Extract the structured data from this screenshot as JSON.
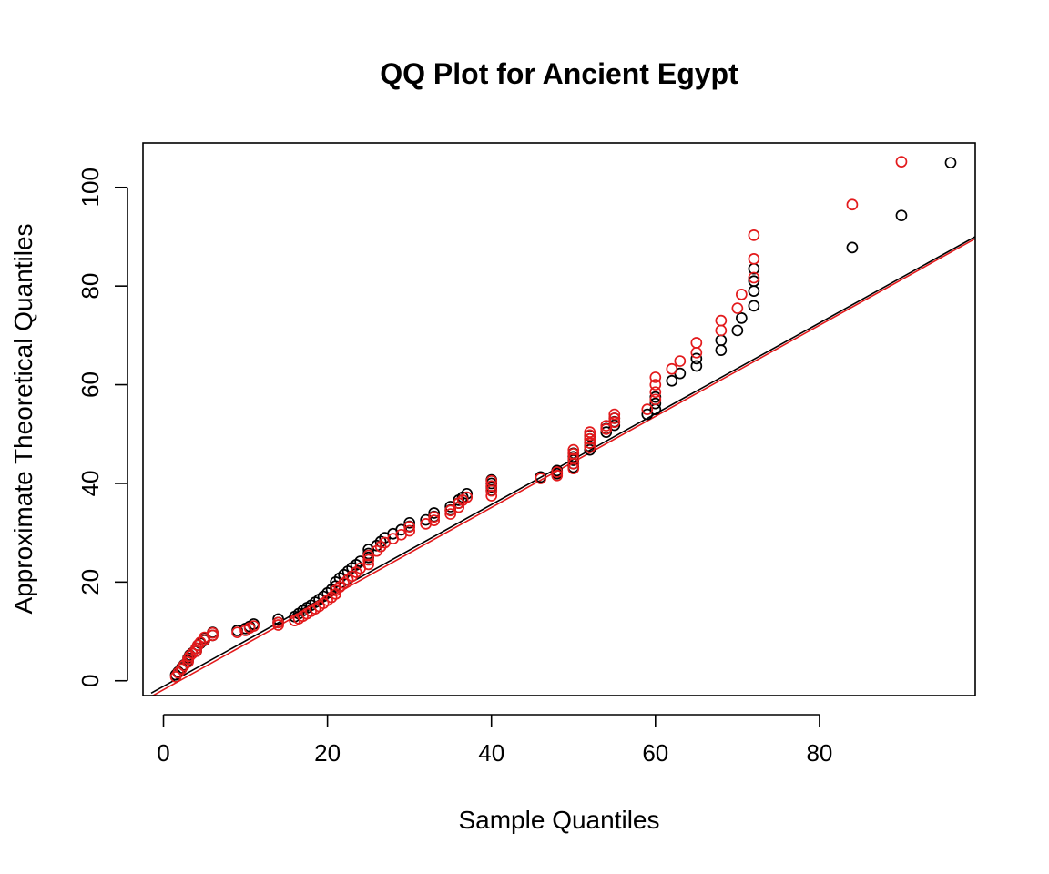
{
  "chart_data": {
    "type": "scatter",
    "title": "QQ Plot for Ancient Egypt",
    "xlabel": "Sample Quantiles",
    "ylabel": "Approximate Theoretical Quantiles",
    "xlim": [
      -2.5,
      99
    ],
    "ylim": [
      -3,
      109
    ],
    "x_ticks": [
      "0",
      "20",
      "40",
      "60",
      "80"
    ],
    "y_ticks": [
      "0",
      "20",
      "40",
      "60",
      "80",
      "100"
    ],
    "grid": false,
    "legend": "none",
    "series": [
      {
        "color": "#000000",
        "marker": "open-circle",
        "points": [
          [
            1.5,
            1.2
          ],
          [
            1.8,
            1.8
          ],
          [
            2.2,
            2.6
          ],
          [
            2.5,
            3.2
          ],
          [
            3,
            4.0
          ],
          [
            3,
            4.6
          ],
          [
            3.2,
            5.2
          ],
          [
            3.5,
            5.6
          ],
          [
            4,
            6.0
          ],
          [
            4,
            6.6
          ],
          [
            4.2,
            7.2
          ],
          [
            4.5,
            7.6
          ],
          [
            5,
            8.2
          ],
          [
            5,
            8.7
          ],
          [
            6,
            9.2
          ],
          [
            6,
            9.8
          ],
          [
            9,
            10.2
          ],
          [
            10,
            10.6
          ],
          [
            10.5,
            11.0
          ],
          [
            11,
            11.5
          ],
          [
            14,
            11.8
          ],
          [
            14,
            12.5
          ],
          [
            16,
            13.0
          ],
          [
            16.5,
            13.6
          ],
          [
            17,
            14.2
          ],
          [
            17.5,
            14.8
          ],
          [
            18,
            15.3
          ],
          [
            18.5,
            15.9
          ],
          [
            19,
            16.5
          ],
          [
            19.5,
            17.1
          ],
          [
            20,
            17.8
          ],
          [
            20.5,
            18.5
          ],
          [
            21,
            19.2
          ],
          [
            21,
            20.0
          ],
          [
            21.5,
            20.8
          ],
          [
            22,
            21.5
          ],
          [
            22.5,
            22.2
          ],
          [
            23,
            22.9
          ],
          [
            23.5,
            23.5
          ],
          [
            24,
            24.2
          ],
          [
            25,
            25.0
          ],
          [
            25,
            25.8
          ],
          [
            25,
            26.6
          ],
          [
            26,
            27.4
          ],
          [
            26.5,
            28.2
          ],
          [
            27,
            29.0
          ],
          [
            28,
            29.8
          ],
          [
            29,
            30.6
          ],
          [
            30,
            31.3
          ],
          [
            30,
            32.0
          ],
          [
            32,
            32.6
          ],
          [
            33,
            33.3
          ],
          [
            33,
            34.0
          ],
          [
            35,
            34.6
          ],
          [
            35,
            35.3
          ],
          [
            36,
            36.0
          ],
          [
            36,
            36.6
          ],
          [
            36.5,
            37.2
          ],
          [
            37,
            37.9
          ],
          [
            40,
            38.6
          ],
          [
            40,
            39.3
          ],
          [
            40,
            40.0
          ],
          [
            40,
            40.7
          ],
          [
            46,
            41.3
          ],
          [
            48,
            42.0
          ],
          [
            48,
            42.6
          ],
          [
            50,
            43.3
          ],
          [
            50,
            44.0
          ],
          [
            50,
            44.7
          ],
          [
            50,
            45.4
          ],
          [
            50,
            46.1
          ],
          [
            52,
            46.8
          ],
          [
            52,
            47.5
          ],
          [
            52,
            48.2
          ],
          [
            52,
            49.0
          ],
          [
            52,
            49.7
          ],
          [
            54,
            50.4
          ],
          [
            54,
            51.1
          ],
          [
            55,
            51.8
          ],
          [
            55,
            52.5
          ],
          [
            55,
            53.2
          ],
          [
            59,
            54.0
          ],
          [
            60,
            55.0
          ],
          [
            60,
            56.2
          ],
          [
            60,
            57.5
          ],
          [
            62,
            60.8
          ],
          [
            63,
            62.3
          ],
          [
            65,
            63.8
          ],
          [
            65,
            65.3
          ],
          [
            68,
            67.0
          ],
          [
            68,
            69.0
          ],
          [
            70,
            71.0
          ],
          [
            70.5,
            73.5
          ],
          [
            72,
            76.0
          ],
          [
            72,
            79.0
          ],
          [
            72,
            81.0
          ],
          [
            72,
            83.5
          ],
          [
            84,
            87.8
          ],
          [
            90,
            94.3
          ],
          [
            96,
            105.0
          ]
        ]
      },
      {
        "color": "#e31a1c",
        "marker": "open-circle",
        "points": [
          [
            1.5,
            0.8
          ],
          [
            1.8,
            1.6
          ],
          [
            2.2,
            2.4
          ],
          [
            2.5,
            3.1
          ],
          [
            3,
            3.8
          ],
          [
            3,
            4.4
          ],
          [
            3.2,
            5.0
          ],
          [
            3.5,
            5.5
          ],
          [
            4,
            6.0
          ],
          [
            4,
            6.6
          ],
          [
            4.2,
            7.2
          ],
          [
            4.5,
            7.8
          ],
          [
            5,
            8.3
          ],
          [
            5,
            8.8
          ],
          [
            6,
            9.2
          ],
          [
            6,
            9.7
          ],
          [
            9,
            9.8
          ],
          [
            10,
            10.2
          ],
          [
            10.5,
            10.7
          ],
          [
            11,
            11.1
          ],
          [
            14,
            11.3
          ],
          [
            14,
            11.8
          ],
          [
            16,
            12.2
          ],
          [
            16.5,
            12.6
          ],
          [
            17,
            13.1
          ],
          [
            17.5,
            13.6
          ],
          [
            18,
            14.1
          ],
          [
            18.5,
            14.6
          ],
          [
            19,
            15.1
          ],
          [
            19.5,
            15.7
          ],
          [
            20,
            16.3
          ],
          [
            20.5,
            16.9
          ],
          [
            21,
            17.6
          ],
          [
            21,
            18.3
          ],
          [
            21.5,
            19.0
          ],
          [
            22,
            19.8
          ],
          [
            22.5,
            20.5
          ],
          [
            23,
            21.2
          ],
          [
            23.5,
            22.0
          ],
          [
            24,
            22.8
          ],
          [
            25,
            23.6
          ],
          [
            25,
            24.5
          ],
          [
            25,
            25.4
          ],
          [
            26,
            26.3
          ],
          [
            26.5,
            27.2
          ],
          [
            27,
            28.0
          ],
          [
            28,
            28.8
          ],
          [
            29,
            29.6
          ],
          [
            30,
            30.4
          ],
          [
            30,
            31.2
          ],
          [
            32,
            31.8
          ],
          [
            33,
            32.5
          ],
          [
            33,
            33.2
          ],
          [
            35,
            33.8
          ],
          [
            35,
            34.5
          ],
          [
            36,
            35.2
          ],
          [
            36,
            36.0
          ],
          [
            36.5,
            36.6
          ],
          [
            37,
            37.2
          ],
          [
            40,
            37.5
          ],
          [
            40,
            38.5
          ],
          [
            40,
            39.5
          ],
          [
            40,
            40.5
          ],
          [
            46,
            41.0
          ],
          [
            48,
            41.6
          ],
          [
            48,
            42.3
          ],
          [
            50,
            43.0
          ],
          [
            50,
            44.0
          ],
          [
            50,
            45.0
          ],
          [
            50,
            46.0
          ],
          [
            50,
            46.8
          ],
          [
            52,
            47.3
          ],
          [
            52,
            48.2
          ],
          [
            52,
            49.0
          ],
          [
            52,
            49.8
          ],
          [
            52,
            50.4
          ],
          [
            54,
            51.0
          ],
          [
            54,
            51.7
          ],
          [
            55,
            52.4
          ],
          [
            55,
            53.2
          ],
          [
            55,
            54.0
          ],
          [
            59,
            55.0
          ],
          [
            60,
            57.0
          ],
          [
            60,
            58.5
          ],
          [
            60,
            60.0
          ],
          [
            60,
            61.5
          ],
          [
            62,
            63.2
          ],
          [
            63,
            64.8
          ],
          [
            65,
            66.5
          ],
          [
            65,
            68.5
          ],
          [
            68,
            71.0
          ],
          [
            68,
            73.0
          ],
          [
            70,
            75.5
          ],
          [
            70.5,
            78.3
          ],
          [
            72,
            81.7
          ],
          [
            72,
            85.5
          ],
          [
            72,
            90.3
          ],
          [
            84,
            96.5
          ],
          [
            90,
            105.2
          ]
        ]
      }
    ],
    "lines": [
      {
        "color": "#000000",
        "from": [
          -1.5,
          -2.5
        ],
        "to": [
          99,
          90.0
        ]
      },
      {
        "color": "#e31a1c",
        "from": [
          -1.5,
          -3.2
        ],
        "to": [
          99,
          89.6
        ]
      }
    ]
  }
}
